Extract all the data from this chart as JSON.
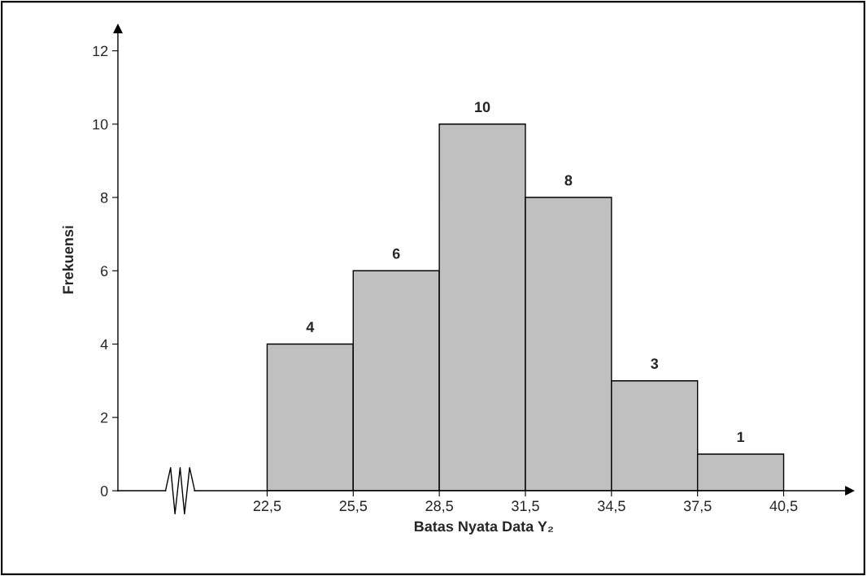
{
  "chart_data": {
    "type": "histogram",
    "xlabel": "Batas Nyata Data Y₂",
    "ylabel": "Frekuensi",
    "bins": [
      22.5,
      25.5,
      28.5,
      31.5,
      34.5,
      37.5,
      40.5
    ],
    "values": [
      4,
      6,
      10,
      8,
      3,
      1
    ],
    "color": "#c0c0c0",
    "data_labels": true,
    "xlim": [
      17.3,
      42.8
    ],
    "xticks": [
      {
        "value": 22.5,
        "label": "22,5"
      },
      {
        "value": 25.5,
        "label": "25,5"
      },
      {
        "value": 28.5,
        "label": "28,5"
      },
      {
        "value": 31.5,
        "label": "31,5"
      },
      {
        "value": 34.5,
        "label": "34,5"
      },
      {
        "value": 37.5,
        "label": "37,5"
      },
      {
        "value": 40.5,
        "label": "40,5"
      }
    ],
    "ylim": [
      0,
      12.6
    ],
    "yticks": [
      0,
      2,
      4,
      6,
      8,
      10,
      12
    ],
    "grid": false
  }
}
